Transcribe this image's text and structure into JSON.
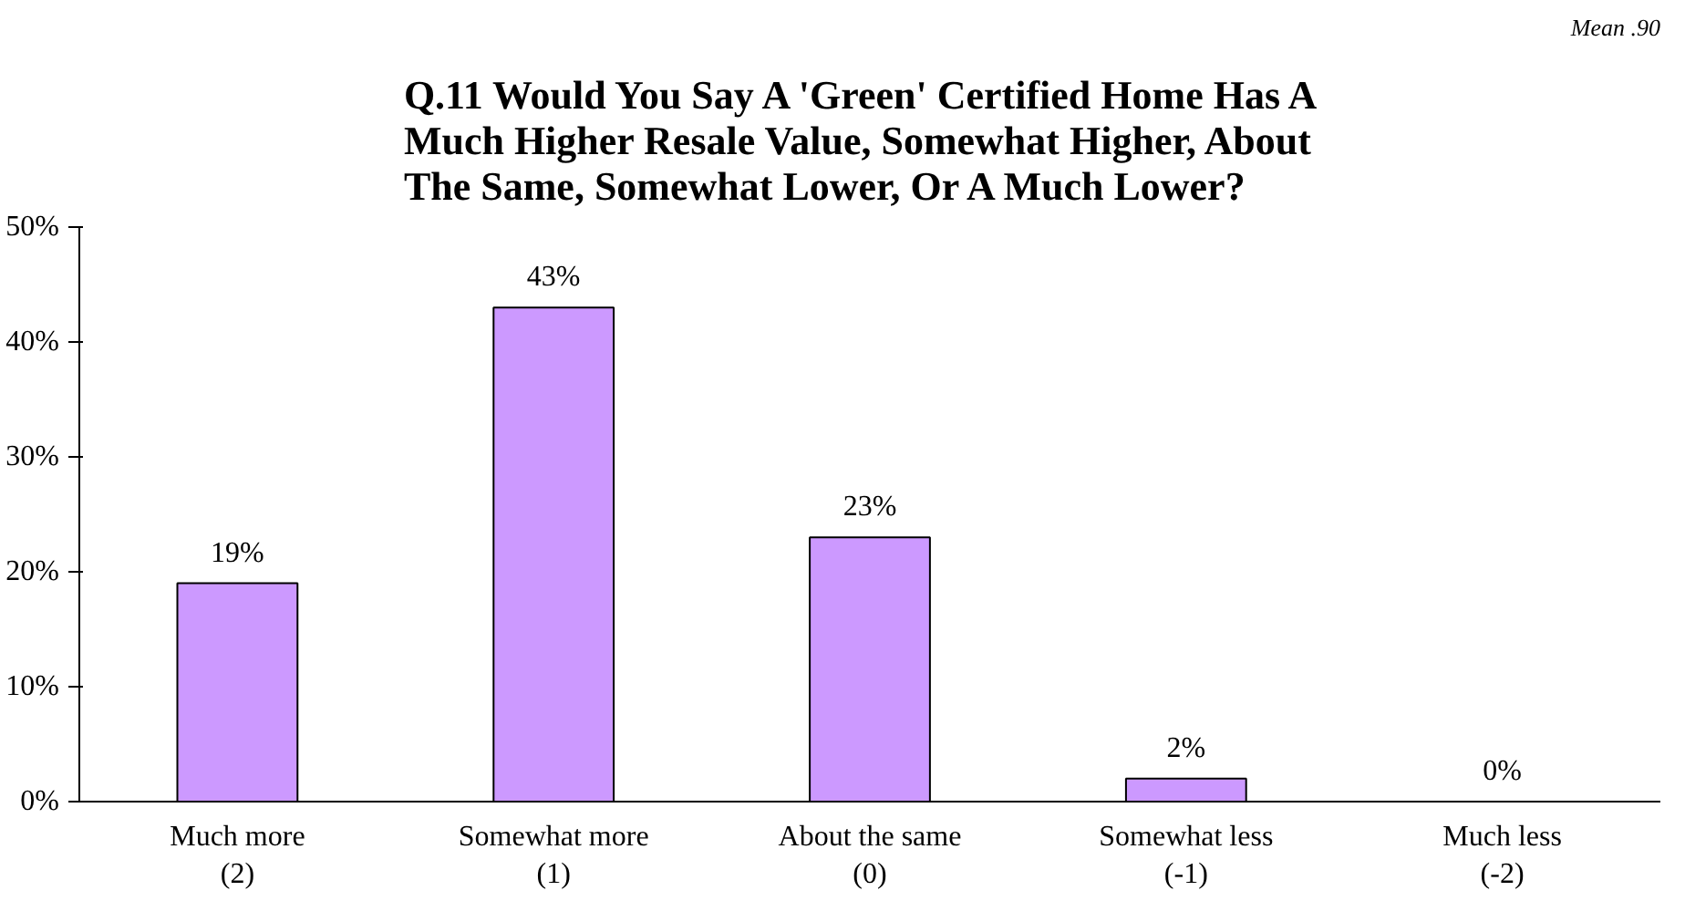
{
  "chart_data": {
    "type": "bar",
    "title": "Q.11  Would You Say A 'Green' Certified Home Has A Much Higher Resale Value, Somewhat Higher, About The Same, Somewhat Lower, Or A Much Lower?",
    "annotations": [
      "Mean .90"
    ],
    "categories": [
      "Much more\n(2)",
      "Somewhat more\n(1)",
      "About the same\n(0)",
      "Somewhat less\n(-1)",
      "Much less\n(-2)"
    ],
    "values": [
      19,
      43,
      23,
      2,
      0
    ],
    "value_labels": [
      "19%",
      "43%",
      "23%",
      "2%",
      "0%"
    ],
    "color": "#cc99ff",
    "ylim": [
      0,
      50
    ],
    "yticks": [
      {
        "value": 0,
        "label": "0%"
      },
      {
        "value": 10,
        "label": "10%"
      },
      {
        "value": 20,
        "label": "20%"
      },
      {
        "value": 30,
        "label": "30%"
      },
      {
        "value": 40,
        "label": "40%"
      },
      {
        "value": 50,
        "label": "50%"
      }
    ],
    "grid": false
  }
}
